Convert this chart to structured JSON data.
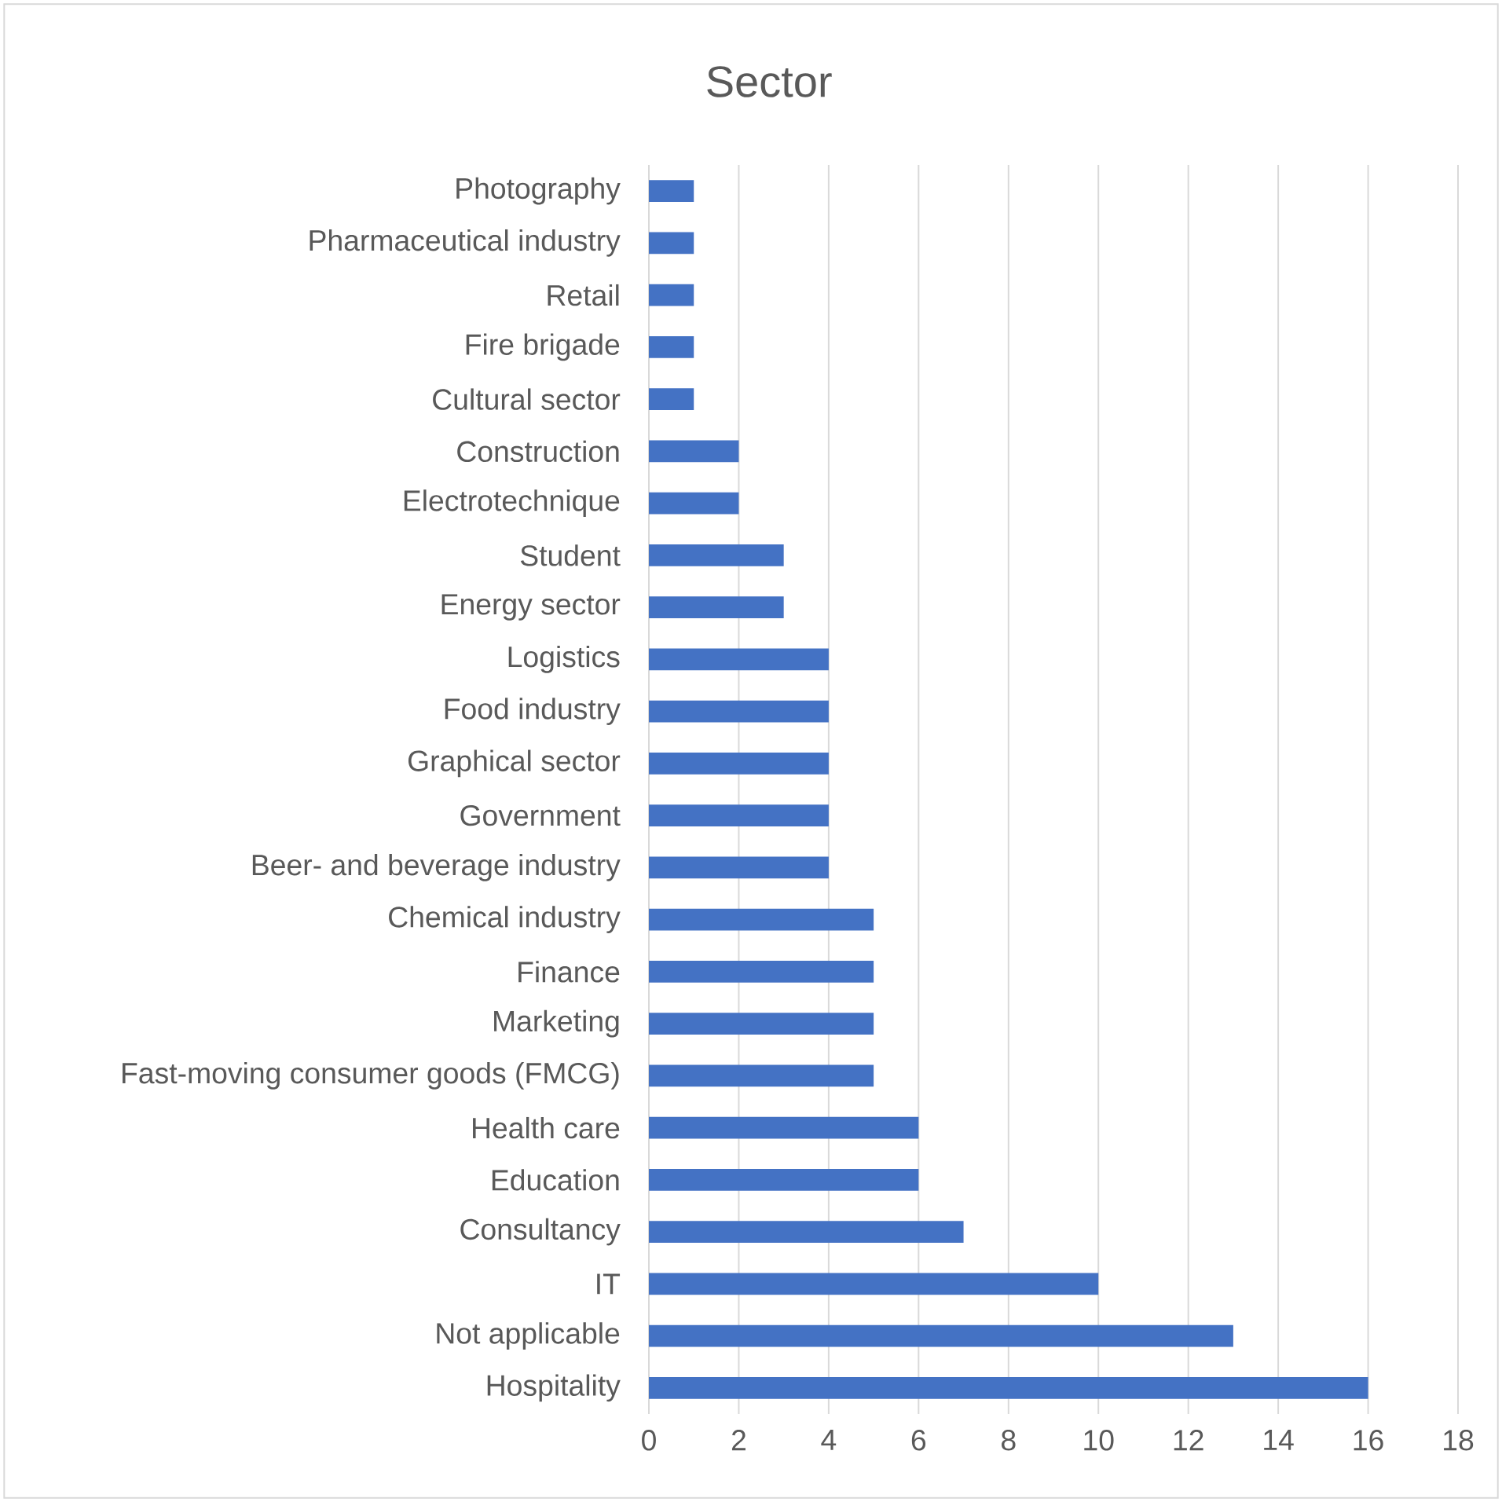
{
  "chart_data": {
    "type": "bar",
    "orientation": "horizontal",
    "title": "Sector",
    "categories": [
      "Photography",
      "Pharmaceutical industry",
      "Retail",
      "Fire brigade",
      "Cultural sector",
      "Construction",
      "Electrotechnique",
      "Student",
      "Energy sector",
      "Logistics",
      "Food industry",
      "Graphical sector",
      "Government",
      "Beer- and beverage industry",
      "Chemical industry",
      "Finance",
      "Marketing",
      "Fast-moving consumer goods (FMCG)",
      "Health care",
      "Education",
      "Consultancy",
      "IT",
      "Not applicable",
      "Hospitality"
    ],
    "values": [
      1,
      1,
      1,
      1,
      1,
      2,
      2,
      3,
      3,
      4,
      4,
      4,
      4,
      4,
      5,
      5,
      5,
      5,
      6,
      6,
      7,
      10,
      13,
      16
    ],
    "color": "#4472c4",
    "xlim": [
      0,
      18
    ],
    "xticks": [
      0,
      2,
      4,
      6,
      8,
      10,
      12,
      14,
      16,
      18
    ],
    "grid": "x"
  }
}
